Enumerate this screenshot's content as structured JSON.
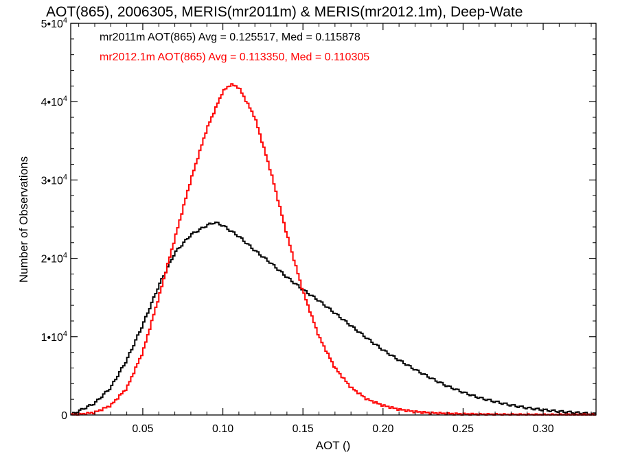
{
  "chart_data": {
    "type": "histogram",
    "title": "AOT(865), 2006305, MERIS(mr2011m) & MERIS(mr2012.1m), Deep-Wate",
    "xlabel": "AOT ()",
    "ylabel": "Number of Observations",
    "xlim": [
      0.005,
      0.333
    ],
    "ylim": [
      0,
      50000
    ],
    "grid": false,
    "x_ticks": [
      {
        "value": 0.05,
        "label": "0.05"
      },
      {
        "value": 0.1,
        "label": "0.10"
      },
      {
        "value": 0.15,
        "label": "0.15"
      },
      {
        "value": 0.2,
        "label": "0.20"
      },
      {
        "value": 0.25,
        "label": "0.25"
      },
      {
        "value": 0.3,
        "label": "0.30"
      }
    ],
    "y_ticks": [
      {
        "value": 0,
        "mantissa": "0",
        "exponent": ""
      },
      {
        "value": 10000,
        "mantissa": "1•10",
        "exponent": "4"
      },
      {
        "value": 20000,
        "mantissa": "2•10",
        "exponent": "4"
      },
      {
        "value": 30000,
        "mantissa": "3•10",
        "exponent": "4"
      },
      {
        "value": 40000,
        "mantissa": "4•10",
        "exponent": "4"
      },
      {
        "value": 50000,
        "mantissa": "5•10",
        "exponent": "4"
      }
    ],
    "legend_position": "top-left",
    "series": [
      {
        "name": "mr2011m",
        "color": "#000000",
        "annotation": "mr2011m AOT(865) Avg = 0.125517, Med = 0.115878",
        "x": [
          0.005,
          0.01,
          0.02,
          0.03,
          0.04,
          0.05,
          0.06,
          0.07,
          0.08,
          0.09,
          0.095,
          0.1,
          0.11,
          0.12,
          0.13,
          0.14,
          0.15,
          0.16,
          0.17,
          0.18,
          0.19,
          0.2,
          0.21,
          0.22,
          0.23,
          0.24,
          0.25,
          0.26,
          0.27,
          0.28,
          0.29,
          0.3,
          0.31,
          0.32,
          0.333
        ],
        "values": [
          0,
          500,
          1500,
          3500,
          7000,
          11500,
          16500,
          20700,
          23000,
          24200,
          24600,
          24200,
          22800,
          21000,
          19400,
          17600,
          16000,
          14600,
          13000,
          11400,
          9800,
          8300,
          7000,
          5800,
          4700,
          3700,
          2900,
          2200,
          1700,
          1250,
          900,
          650,
          450,
          300,
          100
        ]
      },
      {
        "name": "mr2012.1m",
        "color": "#ff0000",
        "annotation": "mr2012.1m AOT(865) Avg = 0.113350, Med = 0.110305",
        "x": [
          0.005,
          0.01,
          0.02,
          0.03,
          0.04,
          0.05,
          0.06,
          0.07,
          0.08,
          0.09,
          0.1,
          0.105,
          0.11,
          0.12,
          0.13,
          0.14,
          0.15,
          0.16,
          0.17,
          0.18,
          0.19,
          0.2,
          0.21,
          0.22,
          0.23,
          0.24,
          0.25,
          0.26,
          0.28,
          0.3,
          0.333
        ],
        "values": [
          0,
          50,
          300,
          1200,
          3400,
          8000,
          15000,
          22500,
          30000,
          36500,
          41300,
          42200,
          41800,
          38000,
          31000,
          23000,
          15800,
          10000,
          6000,
          3500,
          2000,
          1200,
          700,
          400,
          250,
          150,
          100,
          60,
          30,
          10,
          0
        ]
      }
    ]
  }
}
